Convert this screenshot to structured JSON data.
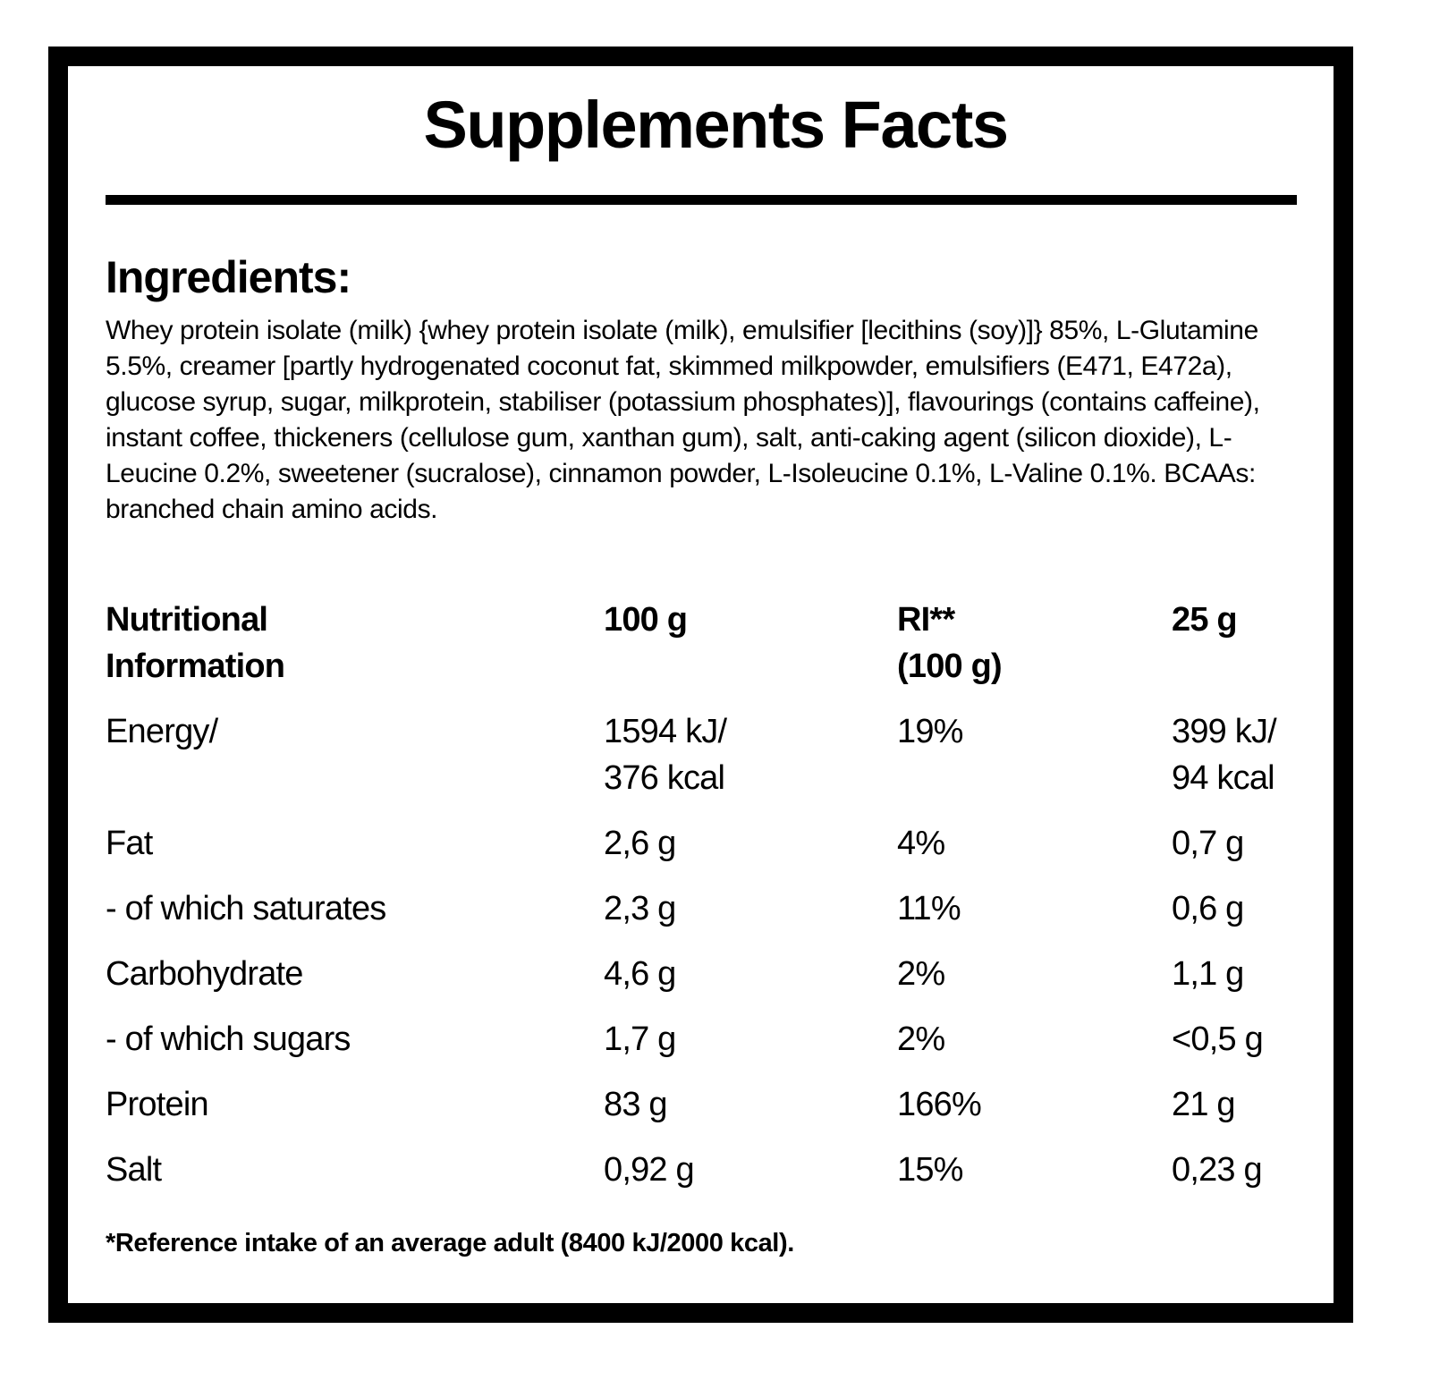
{
  "title": "Supplements Facts",
  "ingredients": {
    "heading": "Ingredients:",
    "text": "Whey protein isolate (milk) {whey protein isolate (milk), emulsifier [lecithins (soy)]} 85%, L-Glutamine 5.5%, creamer [partly hydrogenated coconut fat, skimmed milkpowder, emulsifiers (E471, E472a), glucose syrup, sugar, milkprotein, stabiliser (potassium phosphates)], flavourings (contains caffeine), instant coffee, thickeners (cellulose gum, xanthan gum), salt, anti-caking agent (silicon dioxide), L-Leucine 0.2%, sweetener (sucralose), cinnamon powder, L-Isoleucine 0.1%, L-Valine 0.1%. BCAAs: branched chain amino acids."
  },
  "table": {
    "header": [
      "Nutritional\nInformation",
      "100 g",
      "RI**\n(100 g)",
      "25 g"
    ],
    "rows": [
      [
        "Energy/",
        "1594 kJ/\n376 kcal",
        "19%",
        "399 kJ/\n94 kcal"
      ],
      [
        "Fat",
        "2,6 g",
        "4%",
        "0,7 g"
      ],
      [
        "- of which saturates",
        "2,3 g",
        "11%",
        "0,6 g"
      ],
      [
        "Carbohydrate",
        "4,6 g",
        "2%",
        "1,1 g"
      ],
      [
        "- of which sugars",
        "1,7 g",
        "2%",
        "<0,5 g"
      ],
      [
        "Protein",
        "83 g",
        "166%",
        "21 g"
      ],
      [
        "Salt",
        "0,92 g",
        "15%",
        "0,23 g"
      ]
    ]
  },
  "footnote": "*Reference intake of an average adult (8400 kJ/2000 kcal)."
}
